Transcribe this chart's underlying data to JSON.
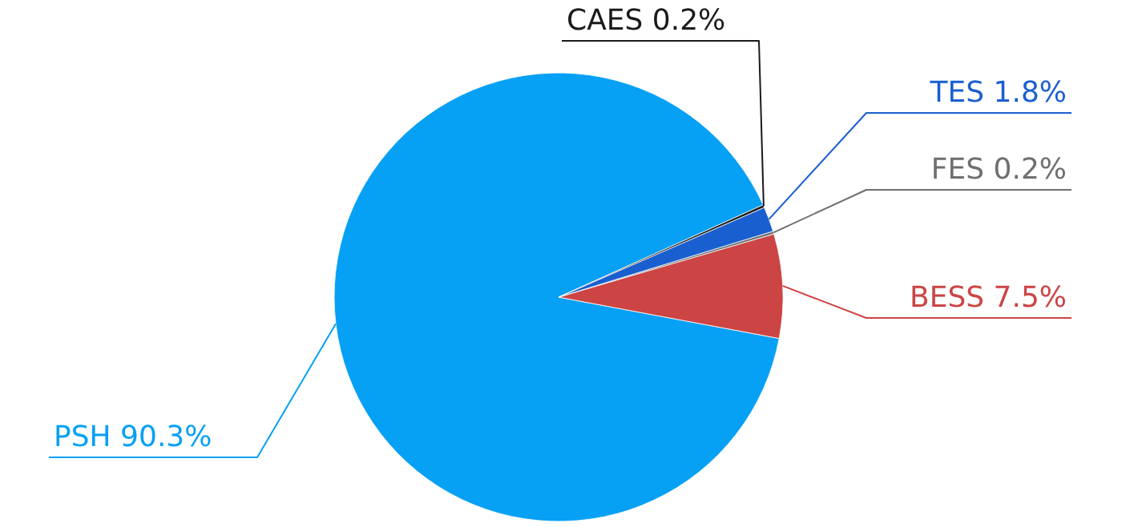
{
  "chart_data": {
    "type": "pie",
    "categories": [
      "PSH",
      "BESS",
      "FES",
      "TES",
      "CAES"
    ],
    "values": [
      90.3,
      7.5,
      0.2,
      1.8,
      0.2
    ],
    "value_labels": [
      "90.3%",
      "7.5%",
      "0.2%",
      "1.8%",
      "0.2%"
    ],
    "colors": [
      "#06a0f5",
      "#cc4444",
      "#6e6e6e",
      "#1a5fd0",
      "#1a1a1a"
    ]
  }
}
